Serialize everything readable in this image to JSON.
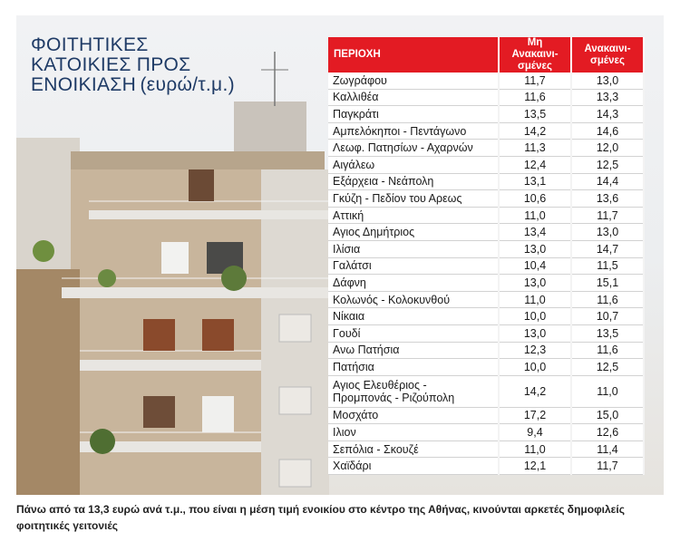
{
  "title": {
    "main": "ΦΟΙΤΗΤΙΚΕΣ\nΚΑΤΟΙΚΙΕΣ ΠΡΟΣ\nΕΝΟΙΚΙΑΣΗ",
    "unit": "(ευρώ/τ.μ.)"
  },
  "table": {
    "headers": [
      "ΠΕΡΙΟΧΗ",
      "Μη Ανακαινι-\nσμένες",
      "Ανακαινι-\nσμένες"
    ],
    "rows": [
      [
        "Ζωγράφου",
        "11,7",
        "13,0"
      ],
      [
        "Καλλιθέα",
        "11,6",
        "13,3"
      ],
      [
        "Παγκράτι",
        "13,5",
        "14,3"
      ],
      [
        "Αμπελόκηποι - Πεντάγωνο",
        "14,2",
        "14,6"
      ],
      [
        "Λεωφ. Πατησίων - Αχαρνών",
        "11,3",
        "12,0"
      ],
      [
        "Αιγάλεω",
        "12,4",
        "12,5"
      ],
      [
        "Εξάρχεια - Νεάπολη",
        "13,1",
        "14,4"
      ],
      [
        "Γκύζη - Πεδίον του Αρεως",
        "10,6",
        "13,6"
      ],
      [
        "Αττική",
        "11,0",
        "11,7"
      ],
      [
        "Αγιος Δημήτριος",
        "13,4",
        "13,0"
      ],
      [
        "Ιλίσια",
        "13,0",
        "14,7"
      ],
      [
        "Γαλάτσι",
        "10,4",
        "11,5"
      ],
      [
        "Δάφνη",
        "13,0",
        "15,1"
      ],
      [
        "Κολωνός - Κολοκυνθού",
        "11,0",
        "11,6"
      ],
      [
        "Νίκαια",
        "10,0",
        "10,7"
      ],
      [
        "Γουδί",
        "13,0",
        "13,5"
      ],
      [
        "Ανω Πατήσια",
        "12,3",
        "11,6"
      ],
      [
        "Πατήσια",
        "10,0",
        "12,5"
      ],
      [
        "Αγιος Ελευθέριος -\nΠρομπονάς - Ριζούπολη",
        "14,2",
        "11,0"
      ],
      [
        "Μοσχάτο",
        "17,2",
        "15,0"
      ],
      [
        "Ιλιον",
        "9,4",
        "12,6"
      ],
      [
        "Σεπόλια - Σκουζέ",
        "11,0",
        "11,4"
      ],
      [
        "Χαϊδάρι",
        "12,1",
        "11,7"
      ]
    ]
  },
  "caption": "Πάνω από τα 13,3 ευρώ ανά τ.μ., που είναι η μέση τιμή ενοικίου στο κέντρο της Αθήνας, κινούνται αρκετές δημοφιλείς φοιτητικές γειτονιές",
  "colors": {
    "header_red": "#e31b23",
    "title_blue": "#1f3b66"
  }
}
